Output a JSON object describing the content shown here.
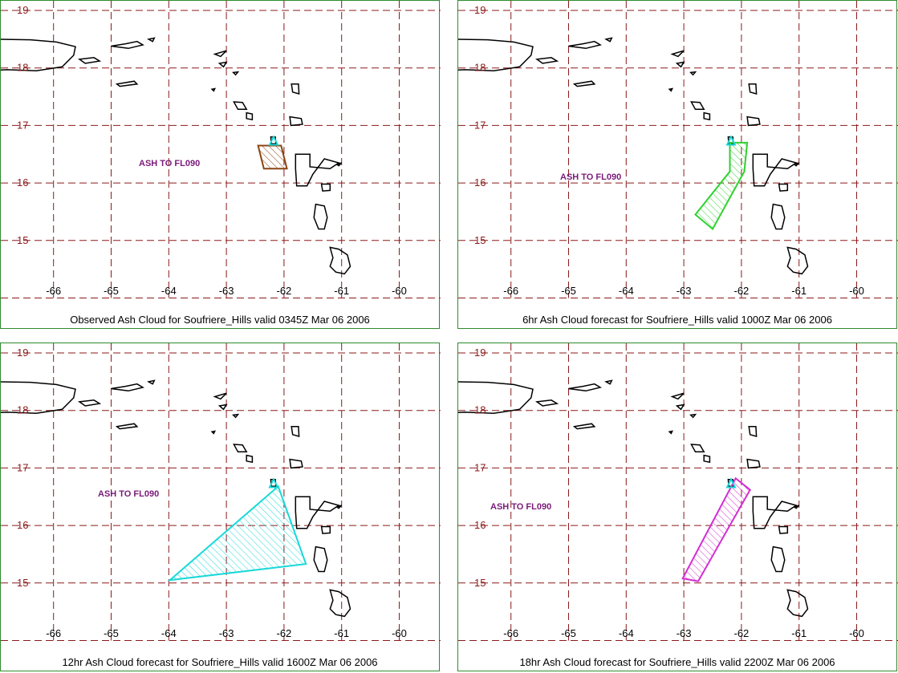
{
  "colors": {
    "grid": "#8b1a1a",
    "lat_label": "#8b1a1a",
    "lon_label": "#000000",
    "coast": "#000000",
    "frame": "#2e8b2e",
    "ash_label": "#7a1a7a",
    "volcano": "#1ad8d8"
  },
  "axes": {
    "lat_ticks": [
      "19",
      "18",
      "17",
      "16",
      "15"
    ],
    "lon_ticks": [
      "-66",
      "-65",
      "-64",
      "-63",
      "-62",
      "-61",
      "-60"
    ]
  },
  "volcano": {
    "name": "Soufriere_Hills",
    "lon": -62.18,
    "lat": 16.72,
    "icon": "volcano-triangle-icon"
  },
  "panels": [
    {
      "caption": "Observed Ash Cloud for Soufriere_Hills valid 0345Z Mar 06 2006",
      "ash_label": "ASH TO FL090",
      "ash_color": "#8b4513",
      "polygon": [
        [
          -62.45,
          16.65
        ],
        [
          -62.05,
          16.65
        ],
        [
          -61.95,
          16.25
        ],
        [
          -62.35,
          16.25
        ]
      ]
    },
    {
      "caption": "6hr Ash Cloud forecast for Soufriere_Hills valid 1000Z Mar 06 2006",
      "ash_label": "ASH TO FL090",
      "ash_color": "#2fd12f",
      "polygon": [
        [
          -62.2,
          16.7
        ],
        [
          -61.9,
          16.7
        ],
        [
          -61.95,
          16.2
        ],
        [
          -62.5,
          15.2
        ],
        [
          -62.8,
          15.45
        ],
        [
          -62.2,
          16.2
        ]
      ]
    },
    {
      "caption": "12hr Ash Cloud forecast for Soufriere_Hills valid 1600Z Mar 06 2006",
      "ash_label": "ASH TO FL090",
      "ash_color": "#1ad8d8",
      "polygon": [
        [
          -62.1,
          16.68
        ],
        [
          -61.62,
          15.33
        ],
        [
          -63.98,
          15.05
        ]
      ]
    },
    {
      "caption": "18hr Ash Cloud forecast for Soufriere_Hills valid 2200Z Mar 06 2006",
      "ash_label": "ASH TO FL090",
      "ash_color": "#d12fd1",
      "polygon": [
        [
          -62.1,
          16.82
        ],
        [
          -61.85,
          16.62
        ],
        [
          -62.75,
          15.03
        ],
        [
          -63.02,
          15.08
        ]
      ]
    }
  ]
}
